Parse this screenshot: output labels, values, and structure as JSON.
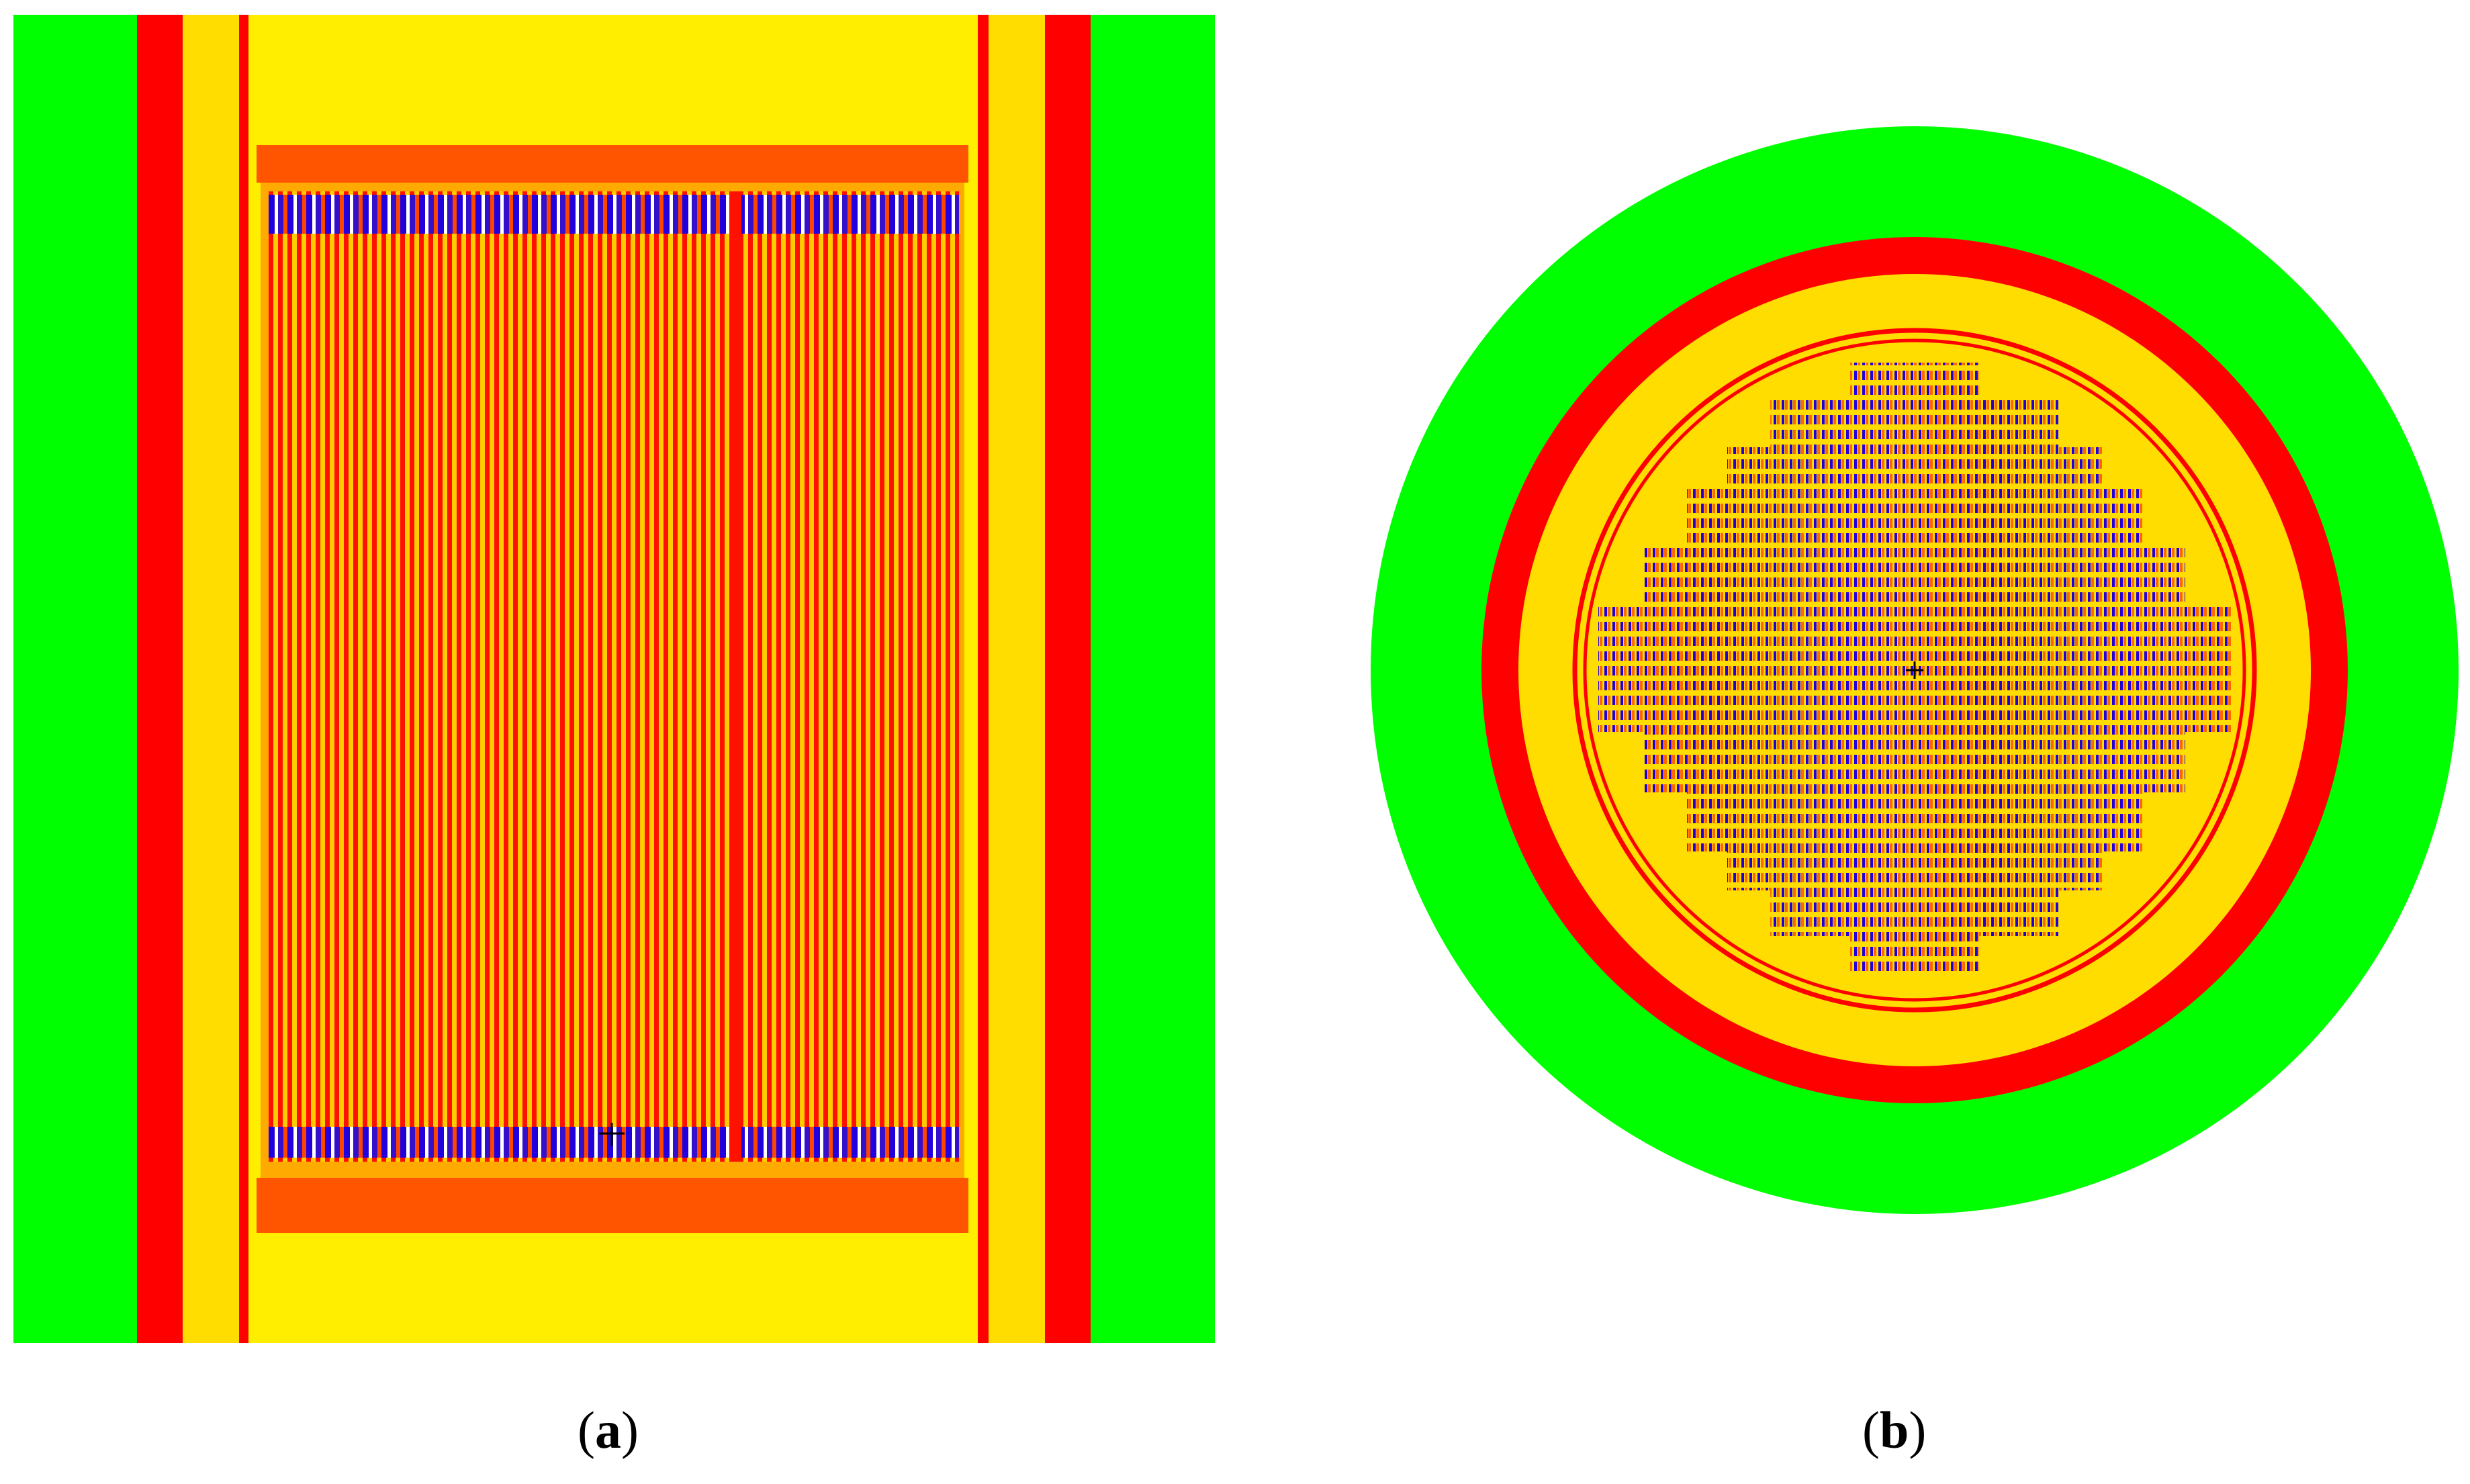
{
  "captions": {
    "a": {
      "open": "(",
      "letter": "a",
      "close": ")"
    },
    "b": {
      "open": "(",
      "letter": "b",
      "close": ")"
    }
  },
  "colors": {
    "reflector_green": "#00ff00",
    "shield_red": "#ff0000",
    "gap_yellow": "#ffdd00",
    "vessel_yellow": "#ffee00",
    "plate_orange": "#ff5500",
    "fuel_blue": "#2200dd",
    "fuel_orange": "#ff8800"
  },
  "panels": {
    "a": {
      "view": "axial-section",
      "label_letter": "a"
    },
    "b": {
      "view": "radial-section",
      "label_letter": "b"
    }
  }
}
